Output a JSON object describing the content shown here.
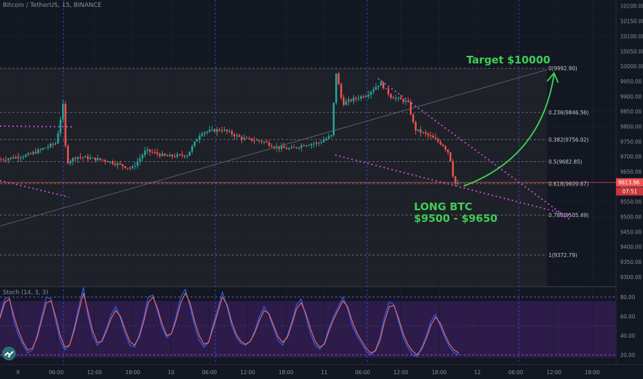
{
  "header": {
    "title": "Bitcoin / TetherUS, 15, BINANCE"
  },
  "indicator": {
    "label": "Stoch (14, 3, 3)"
  },
  "colors": {
    "background": "#131722",
    "up": "#26a69a",
    "down": "#ef5350",
    "fib_line": "#6a6f7a",
    "pattern": "#c94fd8",
    "annotation": "#3fce55",
    "price_line": "#ef5350",
    "stoch_k": "#2962ff",
    "stoch_d": "#ef6c5b",
    "stoch_band": "#2d1b4a"
  },
  "annotations": {
    "target": "Target $10000",
    "long_line1": "LONG BTC",
    "long_line2": "$9500 - $9650"
  },
  "chart_data": [
    {
      "type": "candlestick",
      "symbol": "Bitcoin / TetherUS",
      "interval": "15",
      "exchange": "BINANCE",
      "ylim": [
        9270,
        10220
      ],
      "y_ticks": [
        9300,
        9350,
        9400,
        9450,
        9500,
        9550,
        9600,
        9650,
        9700,
        9750,
        9800,
        9850,
        9900,
        9950,
        10000,
        10050,
        10100,
        10150,
        10200
      ],
      "y_tick_labels": [
        "9300.00",
        "9350.00",
        "9400.00",
        "9450.00",
        "9500.00",
        "9550.00",
        "9600.00",
        "9650.00",
        "9700.00",
        "9750.00",
        "9800.00",
        "9850.00",
        "9900.00",
        "9950.00",
        "10000.00",
        "10050.00",
        "10100.00",
        "10150.00",
        "10200.00"
      ],
      "x_tick_labels": [
        "9",
        "06:00",
        "12:00",
        "18:00",
        "10",
        "06:00",
        "12:00",
        "18:00",
        "11",
        "06:00",
        "12:00",
        "18:00",
        "12",
        "06:00",
        "12:00",
        "18:00"
      ],
      "current_price_label": "9613.96",
      "countdown_label": "07:51",
      "fibonacci": [
        {
          "label": "0(9992.90)",
          "value": 9992.9
        },
        {
          "label": "0.236(9846.56)",
          "value": 9846.56
        },
        {
          "label": "0.382(9756.02)",
          "value": 9756.02
        },
        {
          "label": "0.5(9682.85)",
          "value": 9682.85
        },
        {
          "label": "0.618(9609.67)",
          "value": 9609.67
        },
        {
          "label": "0.786(9505.49)",
          "value": 9505.49
        },
        {
          "label": "1(9372.79)",
          "value": 9372.79
        }
      ],
      "price_path": [
        [
          0,
          9690
        ],
        [
          40,
          9705
        ],
        [
          80,
          9745
        ],
        [
          90,
          9870
        ],
        [
          95,
          9680
        ],
        [
          110,
          9700
        ],
        [
          150,
          9688
        ],
        [
          190,
          9660
        ],
        [
          210,
          9720
        ],
        [
          240,
          9700
        ],
        [
          270,
          9705
        ],
        [
          290,
          9780
        ],
        [
          320,
          9790
        ],
        [
          350,
          9760
        ],
        [
          380,
          9750
        ],
        [
          400,
          9730
        ],
        [
          420,
          9725
        ],
        [
          440,
          9740
        ],
        [
          460,
          9745
        ],
        [
          480,
          9770
        ],
        [
          485,
          9990
        ],
        [
          495,
          9875
        ],
        [
          510,
          9890
        ],
        [
          530,
          9905
        ],
        [
          550,
          9945
        ],
        [
          565,
          9900
        ],
        [
          590,
          9880
        ],
        [
          600,
          9790
        ],
        [
          620,
          9770
        ],
        [
          640,
          9740
        ],
        [
          650,
          9710
        ],
        [
          655,
          9640
        ],
        [
          660,
          9600
        ],
        [
          665,
          9613.96
        ]
      ]
    },
    {
      "type": "line",
      "title": "Stoch (14, 3, 3)",
      "ylim": [
        10,
        90
      ],
      "y_ticks": [
        20,
        40,
        60,
        80
      ],
      "y_tick_labels": [
        "20.00",
        "40.00",
        "60.00",
        "80.00"
      ],
      "series": [
        {
          "values": [
            60,
            78,
            80,
            55,
            40,
            30,
            22,
            25,
            40,
            60,
            80,
            78,
            55,
            35,
            25,
            30,
            48,
            70,
            90,
            60,
            40,
            30,
            35,
            48,
            62,
            70,
            58,
            42,
            30,
            28,
            40,
            58,
            80,
            82,
            65,
            48,
            38,
            42,
            60,
            80,
            88,
            70,
            50,
            35,
            28,
            33,
            52,
            68,
            85,
            70,
            50,
            38,
            32,
            30,
            34,
            45,
            60,
            70,
            62,
            48,
            35,
            30,
            40,
            55,
            72,
            78,
            60,
            42,
            30,
            26,
            32,
            48,
            60,
            70,
            80,
            68,
            50,
            40,
            32,
            24,
            20,
            25,
            38,
            60,
            75,
            72,
            55,
            38,
            28,
            20,
            18,
            28,
            40,
            55,
            62,
            50,
            38,
            28,
            22,
            20
          ]
        },
        {
          "values": [
            58,
            74,
            78,
            60,
            45,
            33,
            25,
            27,
            38,
            56,
            74,
            76,
            60,
            40,
            28,
            30,
            45,
            65,
            84,
            65,
            45,
            33,
            34,
            45,
            58,
            66,
            60,
            46,
            34,
            30,
            38,
            54,
            74,
            80,
            68,
            52,
            40,
            42,
            56,
            74,
            84,
            74,
            55,
            40,
            31,
            33,
            48,
            64,
            80,
            72,
            54,
            41,
            34,
            31,
            34,
            43,
            56,
            66,
            63,
            51,
            39,
            33,
            38,
            52,
            68,
            74,
            63,
            47,
            34,
            28,
            31,
            45,
            57,
            67,
            76,
            70,
            55,
            43,
            35,
            27,
            22,
            24,
            35,
            55,
            70,
            71,
            58,
            42,
            31,
            24,
            20,
            26,
            37,
            51,
            59,
            53,
            41,
            31,
            25,
            22
          ]
        }
      ]
    }
  ]
}
